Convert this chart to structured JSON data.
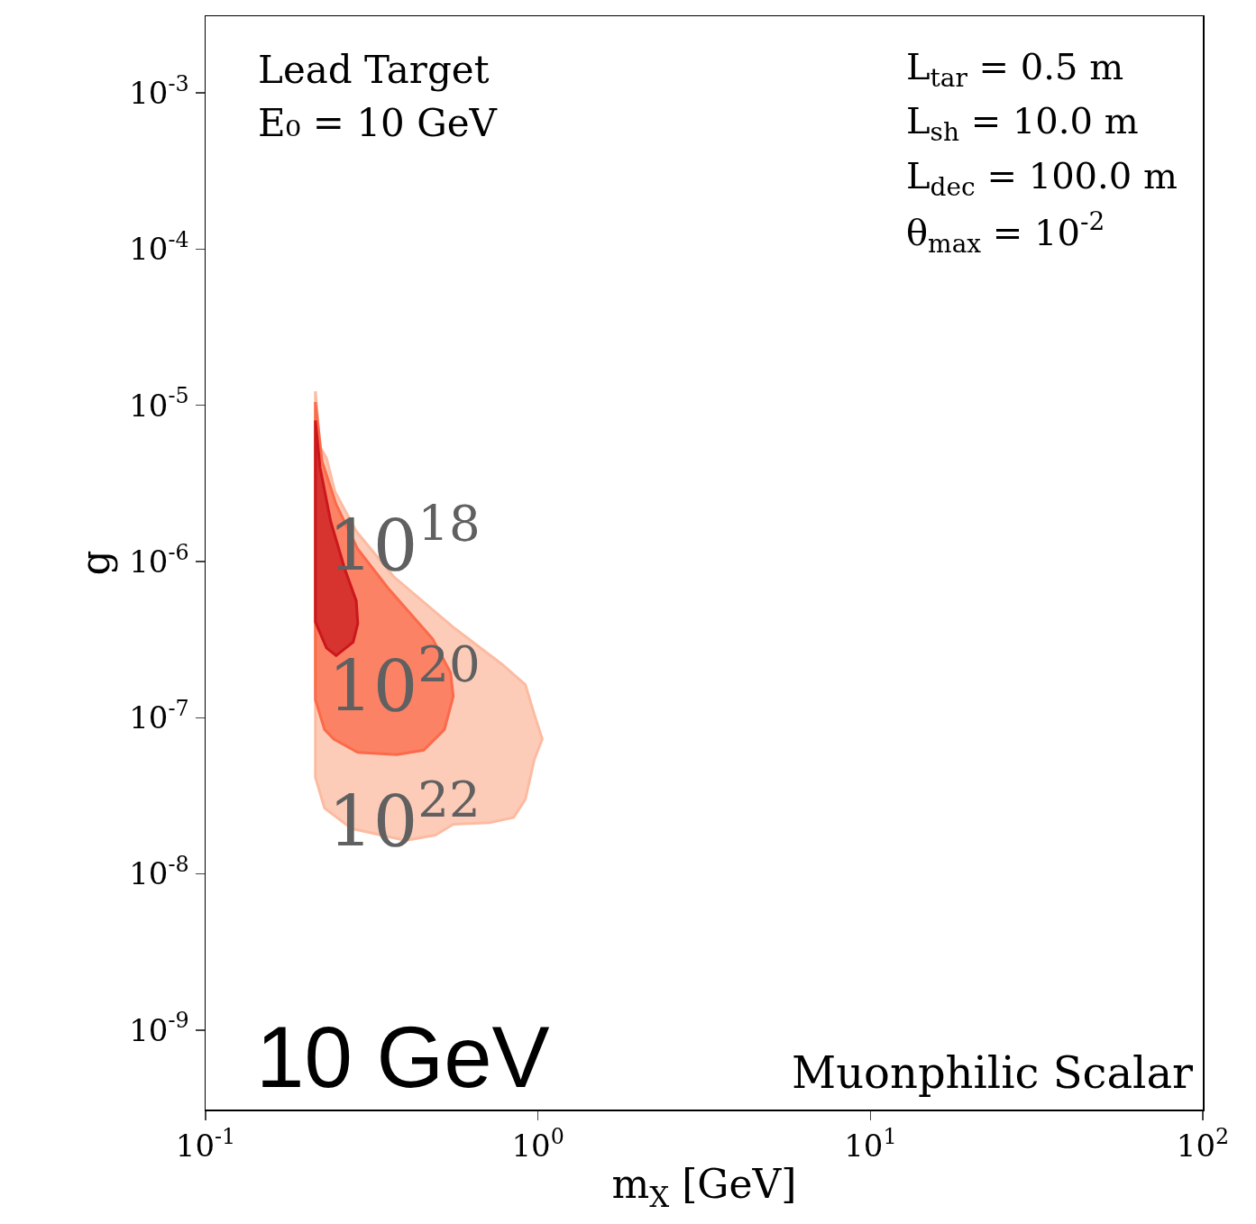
{
  "chart_data": {
    "type": "area",
    "xlabel": "m$_{X}$ [GeV]",
    "ylabel": "g",
    "log": "xy",
    "grid": false,
    "xlim": [
      0.1,
      100
    ],
    "xticks": [
      {
        "value": 0.1,
        "label": "10$^{-1}$"
      },
      {
        "value": 1,
        "label": "10$^{0}$"
      },
      {
        "value": 10,
        "label": "10$^{1}$"
      },
      {
        "value": 100,
        "label": "10$^{2}$"
      }
    ],
    "ylim": [
      3.1e-10,
      0.0031
    ],
    "yticks": [
      {
        "value": 1e-09,
        "label": "10$^{-9}$"
      },
      {
        "value": 1e-08,
        "label": "10$^{-8}$"
      },
      {
        "value": 1e-07,
        "label": "10$^{-7}$"
      },
      {
        "value": 1e-06,
        "label": "10$^{-6}$"
      },
      {
        "value": 1e-05,
        "label": "10$^{-5}$"
      },
      {
        "value": 0.0001,
        "label": "10$^{-4}$"
      },
      {
        "value": 0.001,
        "label": "10$^{-3}$"
      }
    ],
    "series": [
      {
        "name": "10$^{22}$",
        "color": "#fcbba1",
        "x": [
          0.214,
          0.221,
          0.231,
          0.245,
          0.284,
          0.368,
          0.556,
          0.779,
          0.916,
          0.975,
          1.03,
          0.975,
          0.916,
          0.845,
          0.714,
          0.556,
          0.491,
          0.4,
          0.275,
          0.228,
          0.214,
          0.214
        ],
        "values": [
          1.23e-05,
          5.4e-06,
          4.6e-06,
          2.8e-06,
          1.56e-06,
          8e-07,
          3.8e-07,
          2.2e-07,
          1.63e-07,
          1.05e-07,
          7.3e-08,
          5.4e-08,
          3e-08,
          2.3e-08,
          2.13e-08,
          2.08e-08,
          1.77e-08,
          1.64e-08,
          1.95e-08,
          2.64e-08,
          4.15e-08,
          1.23e-05
        ]
      },
      {
        "name": "10$^{20}$",
        "color": "#fb6a4a",
        "x": [
          0.214,
          0.224,
          0.247,
          0.287,
          0.353,
          0.482,
          0.546,
          0.556,
          0.523,
          0.453,
          0.376,
          0.287,
          0.243,
          0.228,
          0.214,
          0.214
        ],
        "values": [
          1.05e-05,
          4.4e-06,
          2.33e-06,
          1.2e-06,
          6.8e-07,
          3.2e-07,
          1.94e-07,
          1.37e-07,
          8.4e-08,
          6.2e-08,
          5.8e-08,
          6e-08,
          7.3e-08,
          8.4e-08,
          1.3e-07,
          1.05e-05
        ]
      },
      {
        "name": "10$^{18}$",
        "color": "#cb181d",
        "x": [
          0.214,
          0.221,
          0.238,
          0.263,
          0.284,
          0.287,
          0.278,
          0.247,
          0.231,
          0.214,
          0.214
        ],
        "values": [
          8e-06,
          4e-06,
          1.8e-06,
          8.8e-07,
          5.6e-07,
          4e-07,
          3.05e-07,
          2.5e-07,
          2.8e-07,
          4.1e-07,
          8e-06
        ]
      }
    ],
    "annotations": [
      "Lead Target",
      "E₀ = 10 GeV",
      "L$_{tar}$ = 0.5 m",
      "L$_{sh}$ = 10.0 m",
      "L$_{dec}$ = 100.0 m",
      "θ$_{max}$ = 10$^{-2}$",
      "10 GeV",
      "Muonphilic Scalar"
    ]
  }
}
